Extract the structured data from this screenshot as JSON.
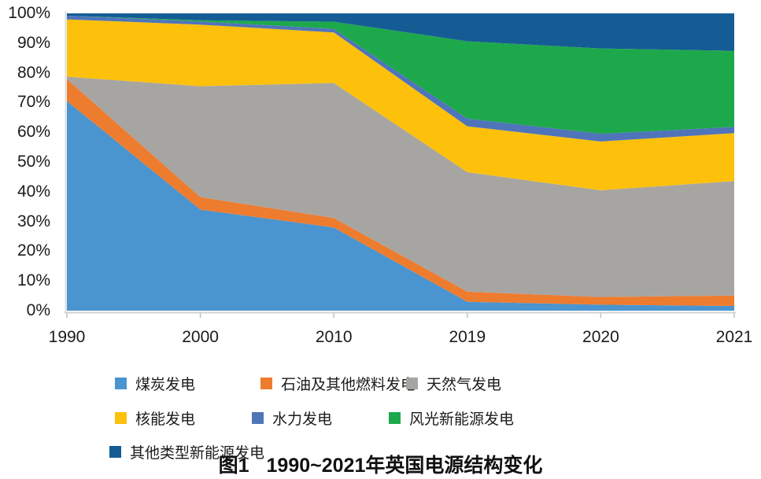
{
  "figure": {
    "caption_label": "图1",
    "caption_text": "1990~2021年英国电源结构变化"
  },
  "chart_data": {
    "type": "area",
    "stacked": true,
    "title": "图1 1990~2021年英国电源结构变化",
    "xlabel": "",
    "ylabel": "",
    "unit": "%",
    "ylim": [
      0,
      100
    ],
    "grid": false,
    "legend_position": "bottom",
    "categories": [
      "1990",
      "2000",
      "2010",
      "2019",
      "2020",
      "2021"
    ],
    "y_tick_labels": [
      "0%",
      "10%",
      "20%",
      "30%",
      "40%",
      "50%",
      "60%",
      "70%",
      "80%",
      "90%",
      "100%"
    ],
    "y_tick_values": [
      0,
      10,
      20,
      30,
      40,
      50,
      60,
      70,
      80,
      90,
      100
    ],
    "series": [
      {
        "name": "煤炭发电",
        "color": "#4a94cf",
        "values": [
          70.5,
          34.0,
          28.0,
          3.0,
          2.0,
          1.6
        ]
      },
      {
        "name": "石油及其他燃料发电",
        "color": "#ed7c2f",
        "values": [
          7.4,
          4.2,
          3.2,
          3.4,
          2.6,
          3.5
        ]
      },
      {
        "name": "天然气发电",
        "color": "#a7a5a2",
        "values": [
          0.8,
          37.3,
          45.4,
          40.2,
          35.9,
          38.5
        ]
      },
      {
        "name": "核能发电",
        "color": "#fdc10c",
        "values": [
          19.3,
          20.7,
          17.0,
          15.4,
          16.4,
          16.1
        ]
      },
      {
        "name": "水力发电",
        "color": "#4f74ba",
        "values": [
          1.2,
          1.1,
          1.2,
          2.6,
          2.6,
          2.1
        ]
      },
      {
        "name": "风光新能源发电",
        "color": "#1ea84c",
        "values": [
          0.0,
          0.4,
          2.4,
          26.0,
          28.7,
          25.6
        ]
      },
      {
        "name": "其他类型新能源发电",
        "color": "#155c95",
        "values": [
          0.8,
          2.3,
          2.8,
          9.4,
          11.8,
          12.6
        ]
      }
    ]
  }
}
